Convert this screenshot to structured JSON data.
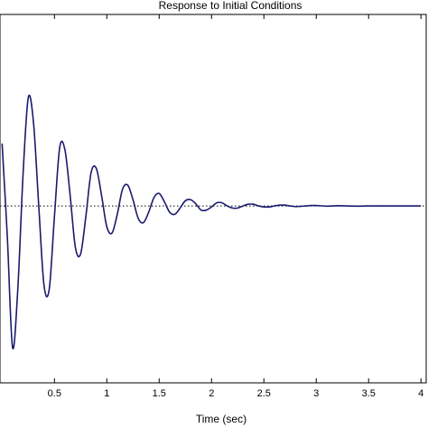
{
  "chart_data": {
    "type": "line",
    "title": "Response to Initial Conditions",
    "xlabel": "Time (sec)",
    "ylabel": "",
    "xlim": [
      -0.02,
      4.05
    ],
    "ylim": [
      -0.85,
      0.92
    ],
    "x_ticks": [
      0.5,
      1,
      1.5,
      2,
      2.5,
      3,
      3.5,
      4
    ],
    "x_tick_labels": [
      "0.5",
      "1",
      "1.5",
      "2",
      "2.5",
      "3",
      "3.5",
      "4"
    ],
    "grid": false,
    "line_color": "#1a1a6e",
    "reference_line": {
      "y": 0,
      "style": "dotted",
      "color": "#000000"
    },
    "series": [
      {
        "name": "",
        "x": [
          0,
          0.05,
          0.1,
          0.15,
          0.2,
          0.25,
          0.3,
          0.35,
          0.4,
          0.45,
          0.5,
          0.55,
          0.6,
          0.65,
          0.7,
          0.75,
          0.8,
          0.85,
          0.9,
          0.95,
          1.0,
          1.05,
          1.1,
          1.15,
          1.2,
          1.25,
          1.3,
          1.35,
          1.4,
          1.45,
          1.5,
          1.55,
          1.6,
          1.65,
          1.7,
          1.75,
          1.8,
          1.85,
          1.9,
          1.95,
          2.0,
          2.05,
          2.1,
          2.15,
          2.2,
          2.25,
          2.3,
          2.35,
          2.4,
          2.45,
          2.5,
          2.55,
          2.6,
          2.65,
          2.7,
          2.75,
          2.8,
          2.85,
          2.9,
          2.95,
          3.0,
          3.1,
          3.2,
          3.3,
          3.4,
          3.5,
          3.6,
          3.7,
          3.8,
          3.9,
          4.0
        ],
        "values": [
          0.3,
          -0.15,
          -0.68,
          -0.4,
          0.15,
          0.52,
          0.4,
          0.0,
          -0.38,
          -0.4,
          -0.05,
          0.28,
          0.27,
          0.05,
          -0.2,
          -0.23,
          -0.05,
          0.16,
          0.18,
          0.05,
          -0.1,
          -0.13,
          -0.04,
          0.08,
          0.1,
          0.03,
          -0.06,
          -0.08,
          -0.03,
          0.04,
          0.06,
          0.02,
          -0.03,
          -0.04,
          -0.01,
          0.025,
          0.03,
          0.01,
          -0.02,
          -0.02,
          -0.005,
          0.015,
          0.015,
          0.0,
          -0.01,
          -0.01,
          0.0,
          0.008,
          0.008,
          0.0,
          -0.005,
          -0.005,
          0.0,
          0.004,
          0.004,
          0.0,
          -0.003,
          -0.002,
          0.0,
          0.002,
          0.002,
          -0.001,
          0.001,
          0.0,
          -0.001,
          0.0,
          0.0,
          0.0,
          0.0,
          0.0,
          0.0
        ]
      }
    ]
  }
}
